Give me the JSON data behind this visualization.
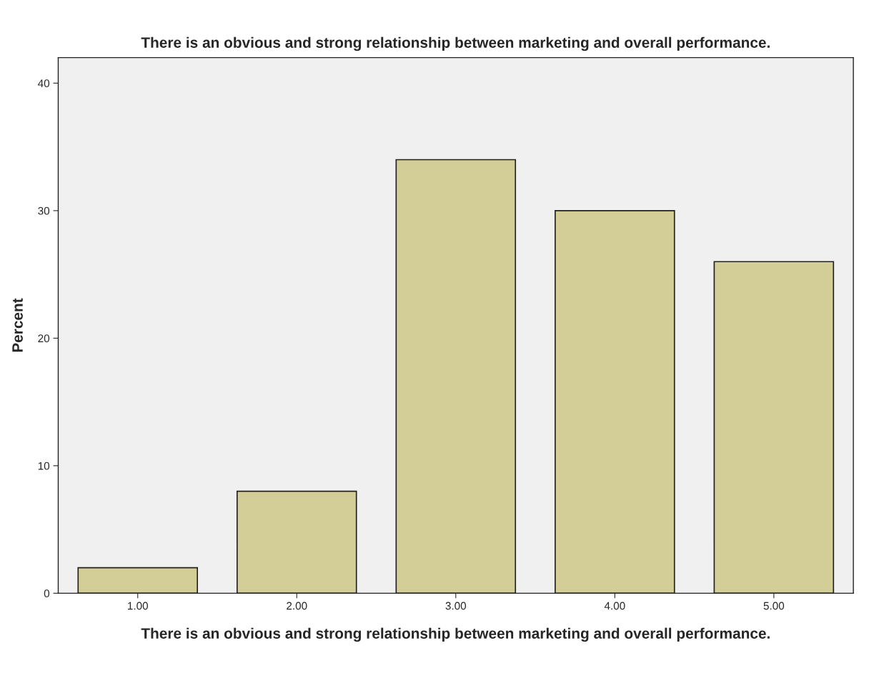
{
  "chart_data": {
    "type": "bar",
    "title": "There is an obvious and strong relationship between marketing and overall performance.",
    "xlabel": "There is an obvious and strong relationship between marketing and overall performance.",
    "ylabel": "Percent",
    "categories": [
      "1.00",
      "2.00",
      "3.00",
      "4.00",
      "5.00"
    ],
    "values": [
      2,
      8,
      34,
      30,
      26
    ],
    "color": "#d3ce97",
    "ylim": [
      0,
      42
    ],
    "yticks": [
      0,
      10,
      20,
      30,
      40
    ],
    "grid": false
  }
}
